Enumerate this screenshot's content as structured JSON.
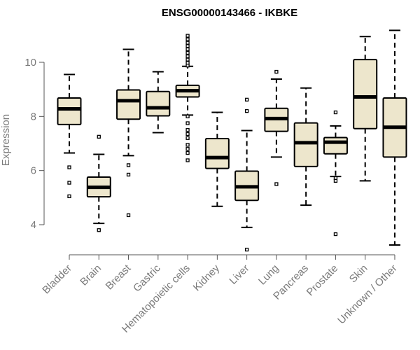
{
  "chart_data": {
    "type": "boxplot",
    "title": "ENSG00000143466 - IKBKE",
    "xlabel": "",
    "ylabel": "Expression",
    "ylim": [
      2.9,
      11.4
    ],
    "yticks": [
      4,
      6,
      8,
      10
    ],
    "colors": {
      "box_fill": "#ede6cc",
      "stroke": "#000000",
      "axis": "#555555",
      "label": "#7a7a7a"
    },
    "categories": [
      "Bladder",
      "Brain",
      "Breast",
      "Gastric",
      "Hematopoietic cells",
      "Kidney",
      "Liver",
      "Lung",
      "Pancreas",
      "Prostate",
      "Skin",
      "Unknown / Other"
    ],
    "boxes": [
      {
        "category": "Bladder",
        "whisker_low": 6.65,
        "q1": 7.7,
        "median": 8.28,
        "q3": 8.68,
        "whisker_high": 9.55,
        "outliers": [
          6.12,
          5.55,
          5.05
        ]
      },
      {
        "category": "Brain",
        "whisker_low": 4.05,
        "q1": 5.03,
        "median": 5.38,
        "q3": 5.76,
        "whisker_high": 6.6,
        "outliers": [
          7.25,
          3.8
        ]
      },
      {
        "category": "Breast",
        "whisker_low": 6.55,
        "q1": 7.9,
        "median": 8.58,
        "q3": 8.98,
        "whisker_high": 10.48,
        "outliers": [
          6.2,
          5.85,
          4.35
        ]
      },
      {
        "category": "Gastric",
        "whisker_low": 7.4,
        "q1": 8.02,
        "median": 8.32,
        "q3": 8.92,
        "whisker_high": 9.65,
        "outliers": []
      },
      {
        "category": "Hematopoietic cells",
        "whisker_low": 8.05,
        "q1": 8.72,
        "median": 8.95,
        "q3": 9.15,
        "whisker_high": 9.85,
        "outliers": [
          10.98,
          10.85,
          10.72,
          10.6,
          10.48,
          10.35,
          10.22,
          10.1,
          9.98,
          9.88,
          8.0,
          7.75,
          7.5,
          7.35,
          7.2,
          6.95,
          6.8,
          6.65,
          6.38
        ]
      },
      {
        "category": "Kidney",
        "whisker_low": 4.68,
        "q1": 6.08,
        "median": 6.48,
        "q3": 7.18,
        "whisker_high": 8.15,
        "outliers": []
      },
      {
        "category": "Liver",
        "whisker_low": 3.9,
        "q1": 4.9,
        "median": 5.4,
        "q3": 5.98,
        "whisker_high": 7.48,
        "outliers": [
          8.62,
          8.2,
          3.08
        ]
      },
      {
        "category": "Lung",
        "whisker_low": 6.5,
        "q1": 7.45,
        "median": 7.92,
        "q3": 8.3,
        "whisker_high": 9.38,
        "outliers": [
          9.65,
          5.5
        ]
      },
      {
        "category": "Pancreas",
        "whisker_low": 4.72,
        "q1": 6.15,
        "median": 7.03,
        "q3": 7.76,
        "whisker_high": 9.05,
        "outliers": []
      },
      {
        "category": "Prostate",
        "whisker_low": 5.78,
        "q1": 6.62,
        "median": 7.05,
        "q3": 7.22,
        "whisker_high": 7.65,
        "outliers": [
          8.15,
          5.72,
          5.62,
          3.65
        ]
      },
      {
        "category": "Skin",
        "whisker_low": 5.62,
        "q1": 7.55,
        "median": 8.72,
        "q3": 10.1,
        "whisker_high": 10.95,
        "outliers": []
      },
      {
        "category": "Unknown / Other",
        "whisker_low": 3.25,
        "q1": 6.5,
        "median": 7.6,
        "q3": 8.68,
        "whisker_high": 11.18,
        "outliers": []
      }
    ]
  }
}
